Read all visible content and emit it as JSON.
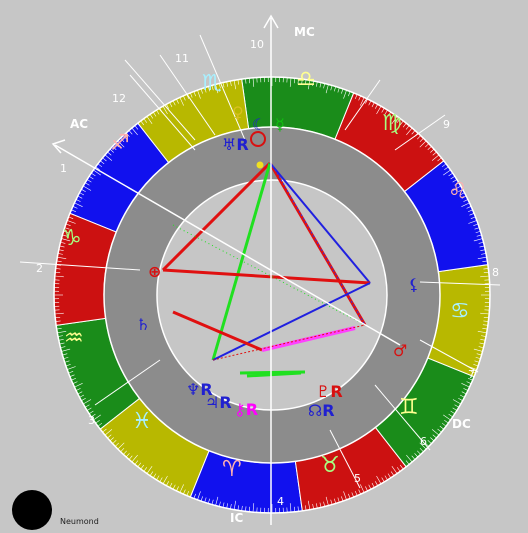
{
  "colors": {
    "background": "#c6c6c6",
    "house_ring": "#8c8c8c",
    "inner_circle": "#c6c6c6",
    "fire": "#cc1111",
    "earth": "#1a8c1a",
    "air": "#b8b800",
    "water": "#1111ee",
    "sign_glyph_on_fire": "#ffb0b0",
    "sign_glyph_on_earth": "#a8ff80",
    "sign_glyph_on_air": "#ffff90",
    "sign_glyph_on_water": "#a8f0ff"
  },
  "axis_labels": {
    "ac": "AC",
    "dc": "DC",
    "mc": "MC",
    "ic": "IC"
  },
  "house_numbers": [
    "1",
    "2",
    "3",
    "4",
    "5",
    "6",
    "7",
    "8",
    "9",
    "10",
    "11",
    "12"
  ],
  "signs": [
    {
      "name": "capricorn-sign",
      "glyph": "♑",
      "element": "earth"
    },
    {
      "name": "aquarius-sign",
      "glyph": "♒",
      "element": "air"
    },
    {
      "name": "pisces-sign",
      "glyph": "♓",
      "element": "water"
    },
    {
      "name": "aries-sign",
      "glyph": "♈",
      "element": "fire"
    },
    {
      "name": "taurus-sign",
      "glyph": "♉",
      "element": "earth"
    },
    {
      "name": "gemini-sign",
      "glyph": "♊",
      "element": "air"
    },
    {
      "name": "cancer-sign",
      "glyph": "♋",
      "element": "water"
    },
    {
      "name": "leo-sign",
      "glyph": "♌",
      "element": "fire"
    },
    {
      "name": "virgo-sign",
      "glyph": "♍",
      "element": "earth"
    },
    {
      "name": "libra-sign",
      "glyph": "♎",
      "element": "air"
    },
    {
      "name": "scorpio-sign",
      "glyph": "♏",
      "element": "water"
    },
    {
      "name": "sagittarius-sign",
      "glyph": "♐",
      "element": "fire"
    }
  ],
  "planets": [
    {
      "name": "venus-glyph",
      "glyph": "♀",
      "color": "#d8c020"
    },
    {
      "name": "moon-glyph",
      "glyph": "☾",
      "color": "#2020d0"
    },
    {
      "name": "sun-glyph",
      "glyph": "☉",
      "color": "#d81010"
    },
    {
      "name": "mercury-glyph",
      "glyph": "☿",
      "color": "#10c010"
    },
    {
      "name": "uranus-glyph",
      "glyph": "♅R",
      "color": "#2020d0"
    },
    {
      "name": "mars-glyph",
      "glyph": "♂",
      "color": "#d81010"
    },
    {
      "name": "saturn-glyph",
      "glyph": "♄",
      "color": "#2020d0"
    },
    {
      "name": "neptune-glyph",
      "glyph": "♆R",
      "color": "#2020d0"
    },
    {
      "name": "jupiter-glyph",
      "glyph": "♃R",
      "color": "#2020d0"
    },
    {
      "name": "chiron-glyph",
      "glyph": "⚷R",
      "color": "#ff00ff"
    },
    {
      "name": "pluto-glyph",
      "glyph": "♇R",
      "color": "#d81010"
    },
    {
      "name": "node-glyph",
      "glyph": "☊R",
      "color": "#2020d0"
    },
    {
      "name": "lilith-glyph",
      "glyph": "⚸",
      "color": "#2020d0"
    },
    {
      "name": "earth-glyph",
      "glyph": "⊕",
      "color": "#d81010"
    }
  ],
  "moon_phase_label": "Neumond"
}
